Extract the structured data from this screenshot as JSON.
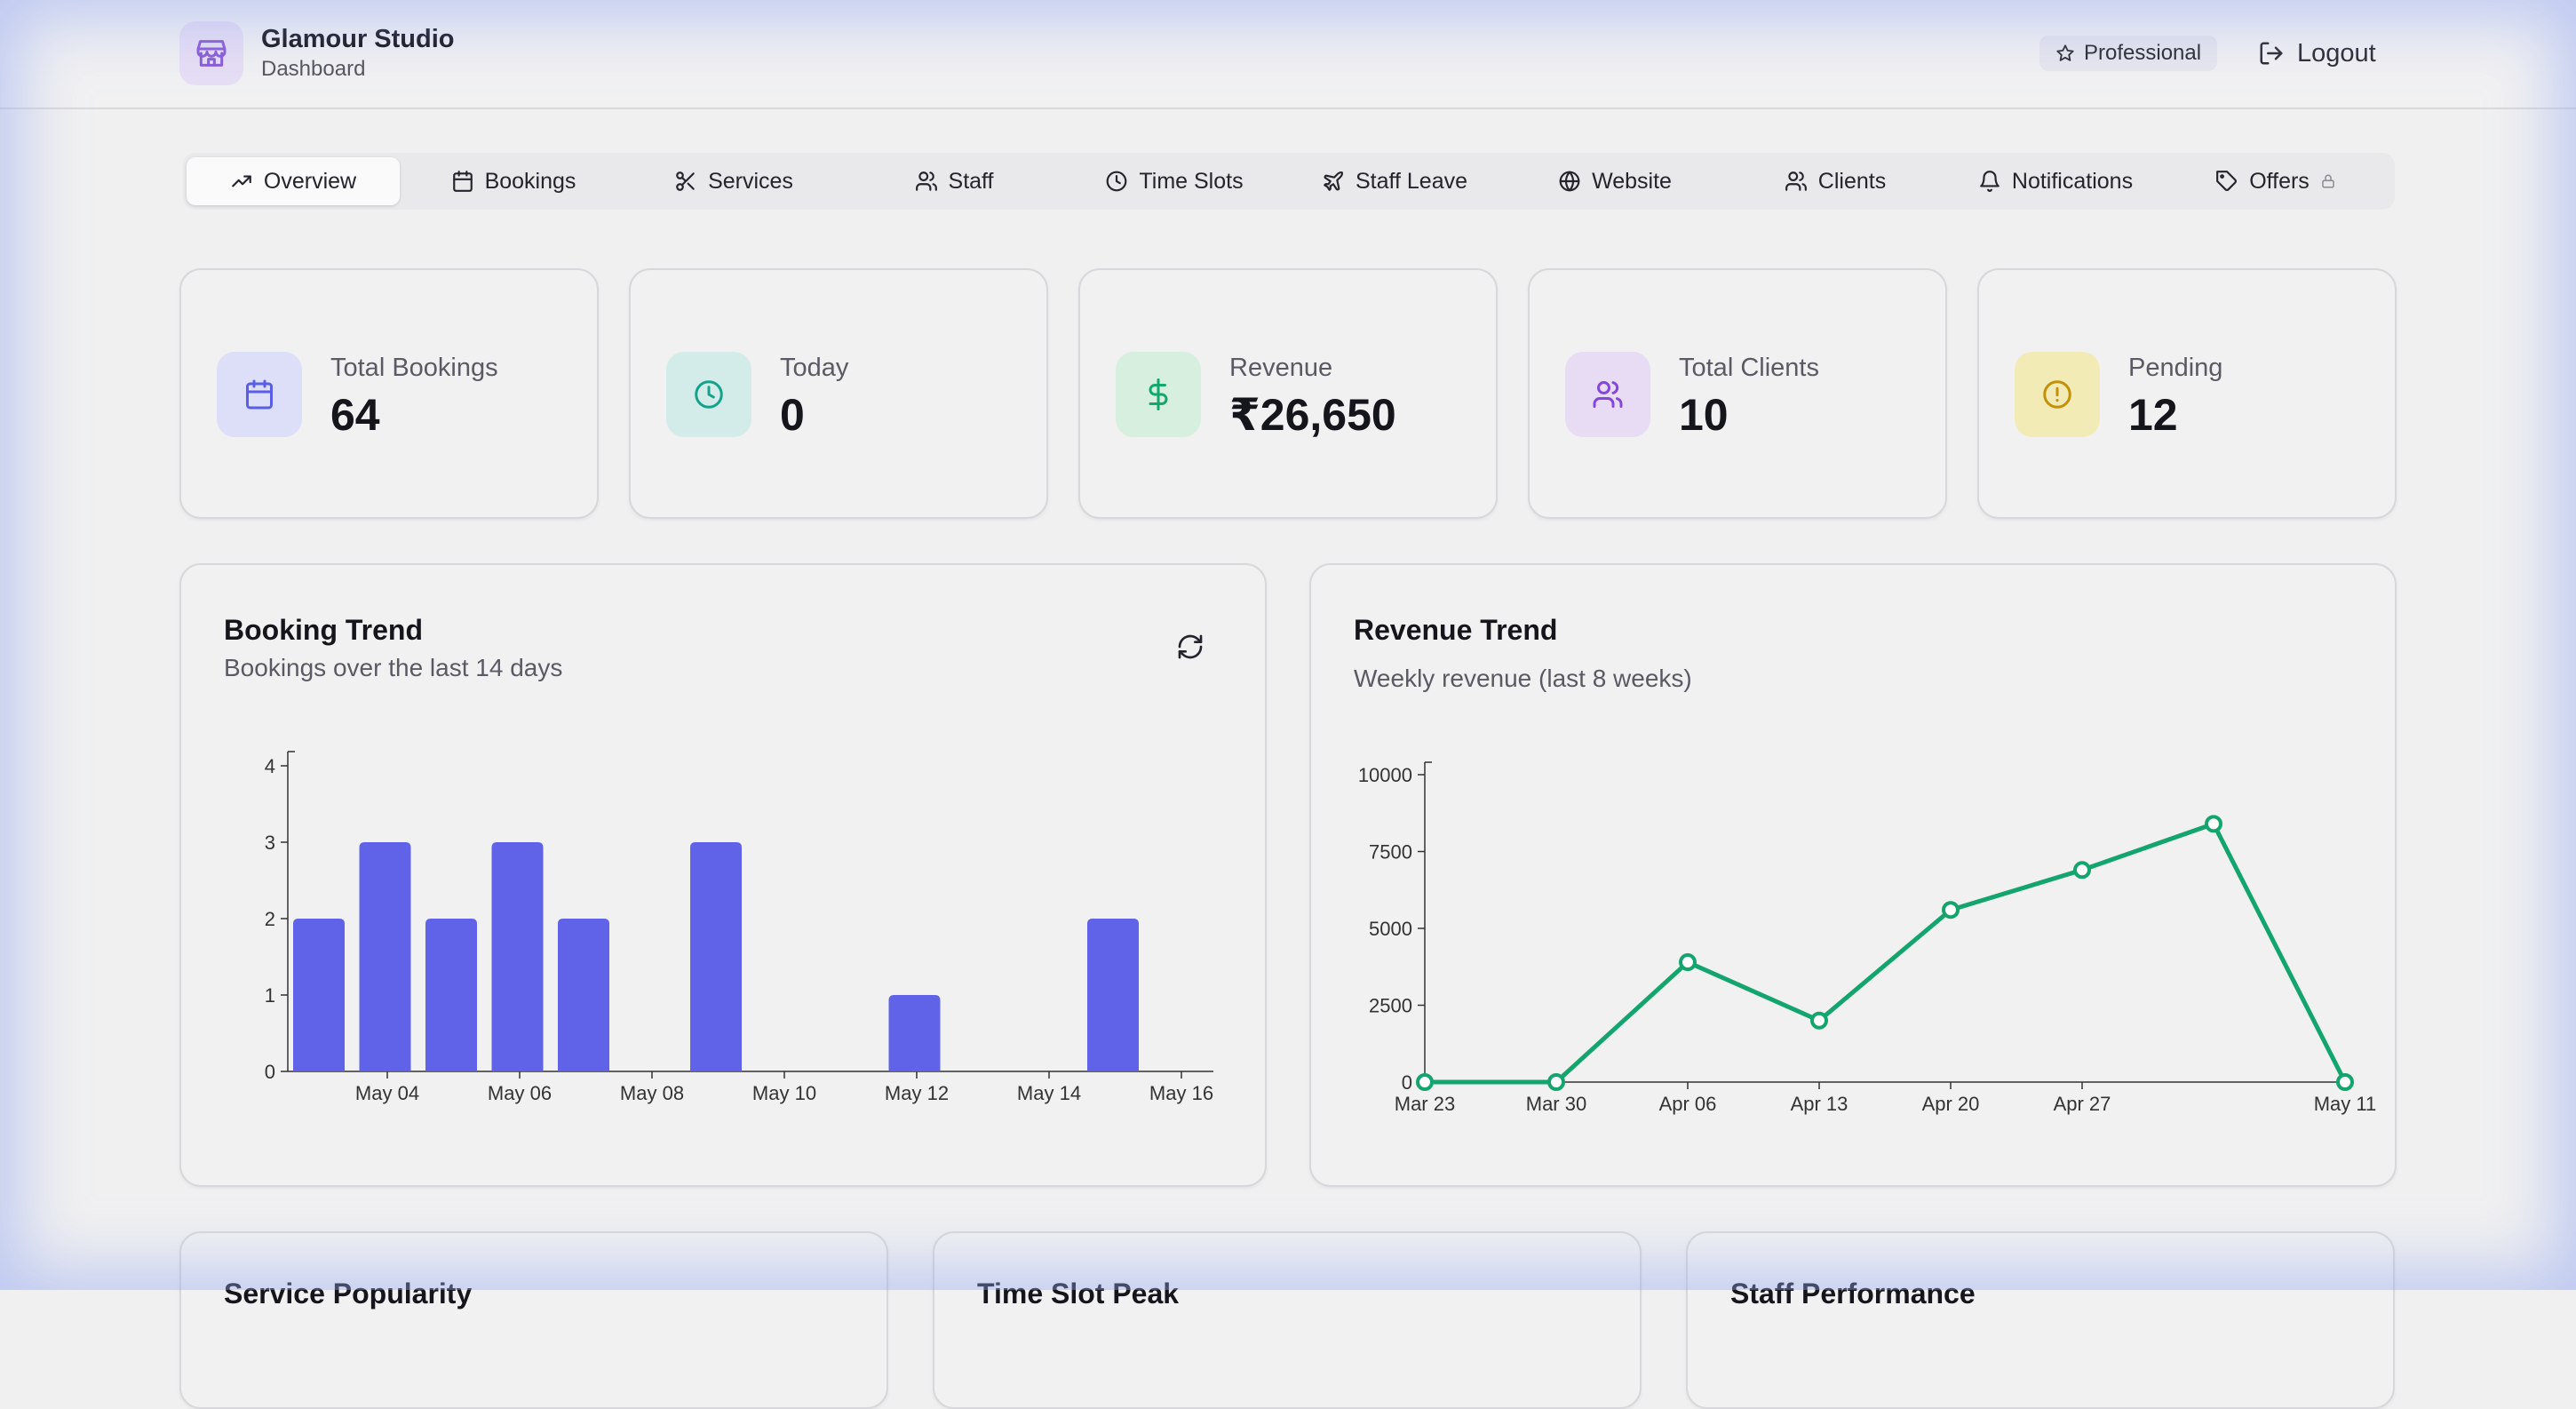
{
  "header": {
    "brand_name": "Glamour Studio",
    "brand_sub": "Dashboard",
    "plan_label": "Professional",
    "logout_label": "Logout"
  },
  "tabs": [
    {
      "label": "Overview",
      "icon": "trend-up-icon"
    },
    {
      "label": "Bookings",
      "icon": "calendar-icon"
    },
    {
      "label": "Services",
      "icon": "scissors-icon"
    },
    {
      "label": "Staff",
      "icon": "users-icon"
    },
    {
      "label": "Time Slots",
      "icon": "clock-icon"
    },
    {
      "label": "Staff Leave",
      "icon": "plane-icon"
    },
    {
      "label": "Website",
      "icon": "globe-icon"
    },
    {
      "label": "Clients",
      "icon": "users-icon"
    },
    {
      "label": "Notifications",
      "icon": "bell-icon"
    },
    {
      "label": "Offers",
      "icon": "tag-icon"
    }
  ],
  "stats": [
    {
      "label": "Total Bookings",
      "value": "64",
      "icon": "calendar-icon",
      "bg": "#dcdff7",
      "color": "#5a5ee6"
    },
    {
      "label": "Today",
      "value": "0",
      "icon": "clock-icon",
      "bg": "#d3ecea",
      "color": "#14a38a"
    },
    {
      "label": "Revenue",
      "value": "₹26,650",
      "icon": "dollar-icon",
      "bg": "#d6efdf",
      "color": "#13a86b"
    },
    {
      "label": "Total Clients",
      "value": "10",
      "icon": "users-icon",
      "bg": "#e7dcf3",
      "color": "#8446dc"
    },
    {
      "label": "Pending",
      "value": "12",
      "icon": "alert-icon",
      "bg": "#f2ebb6",
      "color": "#c39008"
    }
  ],
  "booking_card": {
    "title": "Booking Trend",
    "subtitle": "Bookings over the last 14 days"
  },
  "revenue_card": {
    "title": "Revenue Trend",
    "subtitle": "Weekly revenue (last 8 weeks)"
  },
  "bottom_cards": [
    {
      "title": "Service Popularity"
    },
    {
      "title": "Time Slot Peak"
    },
    {
      "title": "Staff Performance"
    }
  ],
  "colors": {
    "accent": "#6062e8",
    "revenue_line": "#14a56e"
  },
  "chart_data": [
    {
      "type": "bar",
      "title": "Booking Trend",
      "subtitle": "Bookings over the last 14 days",
      "x_ticks": [
        "May 04",
        "May 06",
        "May 08",
        "May 10",
        "May 12",
        "May 14",
        "May 16"
      ],
      "y_ticks": [
        "0",
        "1",
        "2",
        "3",
        "4"
      ],
      "categories": [
        "May 03",
        "May 04",
        "May 05",
        "May 06",
        "May 07",
        "May 08",
        "May 09",
        "May 10",
        "May 11",
        "May 12",
        "May 13",
        "May 14",
        "May 15",
        "May 16"
      ],
      "values": [
        2,
        3,
        2,
        3,
        2,
        0,
        3,
        0,
        0,
        1,
        0,
        0,
        2,
        0
      ],
      "ylim": [
        0,
        4
      ],
      "grid": false,
      "color": "#6062e8"
    },
    {
      "type": "line",
      "title": "Revenue Trend",
      "subtitle": "Weekly revenue (last 8 weeks)",
      "x": [
        "Mar 23",
        "Mar 30",
        "Apr 06",
        "Apr 13",
        "Apr 20",
        "Apr 27",
        "May 04",
        "May 11"
      ],
      "x_ticks": [
        "Mar 23",
        "Mar 30",
        "Apr 06",
        "Apr 13",
        "Apr 20",
        "Apr 27",
        "May 11"
      ],
      "y_ticks": [
        "0",
        "2500",
        "5000",
        "7500",
        "10000"
      ],
      "values": [
        0,
        0,
        3900,
        2000,
        5600,
        6900,
        8400,
        0
      ],
      "ylim": [
        0,
        10000
      ],
      "grid": false,
      "color": "#14a56e"
    }
  ]
}
